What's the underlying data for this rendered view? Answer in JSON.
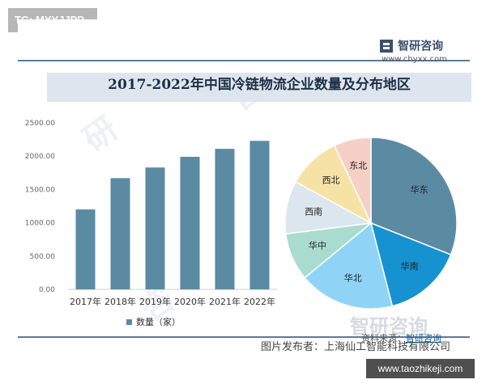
{
  "badge": {
    "text": "TG: MYYJJPP"
  },
  "brand": {
    "name": "智研咨询",
    "url": "www.chyxx.com"
  },
  "title": "2017-2022年中国冷链物流企业数量及分布地区",
  "source": {
    "prefix": "资料来源：",
    "name": "智研咨询"
  },
  "footer_logo": "智研咨询",
  "publisher": "图片发布者：上海仙工智能科技有限公司",
  "site": "www.taozhikeji.com",
  "colors": {
    "bar": "#5b8aa3",
    "rule": "#5b7aa0"
  },
  "chart_data": [
    {
      "type": "bar",
      "categories": [
        "2017年",
        "2018年",
        "2019年",
        "2020年",
        "2021年",
        "2022年"
      ],
      "series": [
        {
          "name": "数量（家）",
          "values": [
            1200,
            1670,
            1830,
            1990,
            2110,
            2230
          ]
        }
      ],
      "yticks": [
        "0.00",
        "500.00",
        "1000.00",
        "1500.00",
        "2000.00",
        "2500.00"
      ],
      "ylim": [
        0,
        2500
      ],
      "title": "2017-2022年中国冷链物流企业数量及分布地区"
    },
    {
      "type": "pie",
      "labels": [
        "华东",
        "华南",
        "华北",
        "华中",
        "西南",
        "西北",
        "东北"
      ],
      "values": [
        31,
        15,
        18,
        9,
        10,
        10,
        7
      ],
      "colors": [
        "#5b8aa3",
        "#1792d0",
        "#8fd3f7",
        "#a9dccf",
        "#dce6ee",
        "#f7e2a6",
        "#f6cfc6"
      ]
    }
  ]
}
